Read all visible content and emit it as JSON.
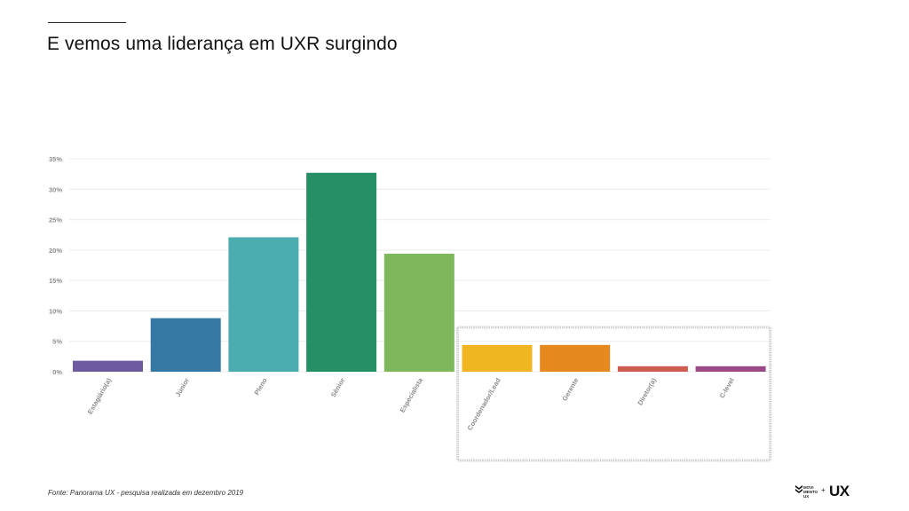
{
  "header": {
    "title": "E vemos uma liderança em UXR surgindo"
  },
  "footer": {
    "source": "Fonte: Panorama UX - pesquisa realizada em dezembro 2019"
  },
  "logo": {
    "line1": "MOVI",
    "line2": "MENTO",
    "line3": "UX",
    "plus": "+",
    "brand": "UX"
  },
  "chart_data": {
    "type": "bar",
    "title": "",
    "xlabel": "",
    "ylabel": "",
    "ylim": [
      0,
      35
    ],
    "yticks": [
      0,
      5,
      10,
      15,
      20,
      25,
      30,
      35
    ],
    "ytick_labels": [
      "0%",
      "5%",
      "10%",
      "15%",
      "20%",
      "25%",
      "30%",
      "35%"
    ],
    "grid": true,
    "categories": [
      "Estagiário(a)",
      "Júnior",
      "Pleno",
      "Sênior",
      "Especialista",
      "Coordenador/Lead",
      "Gerente",
      "Diretor(a)",
      "C-level"
    ],
    "values": [
      1.8,
      8.8,
      22.1,
      32.7,
      19.4,
      4.4,
      4.4,
      0.9,
      0.9
    ],
    "colors": [
      "#6e5a9e",
      "#3578a3",
      "#4badaf",
      "#258f65",
      "#7fb85c",
      "#efb621",
      "#e5891f",
      "#cf5c52",
      "#9c4a85"
    ],
    "highlight": {
      "from_category": "Coordenador/Lead",
      "to_category": "C-level",
      "style": "gray rectangle outline"
    }
  }
}
